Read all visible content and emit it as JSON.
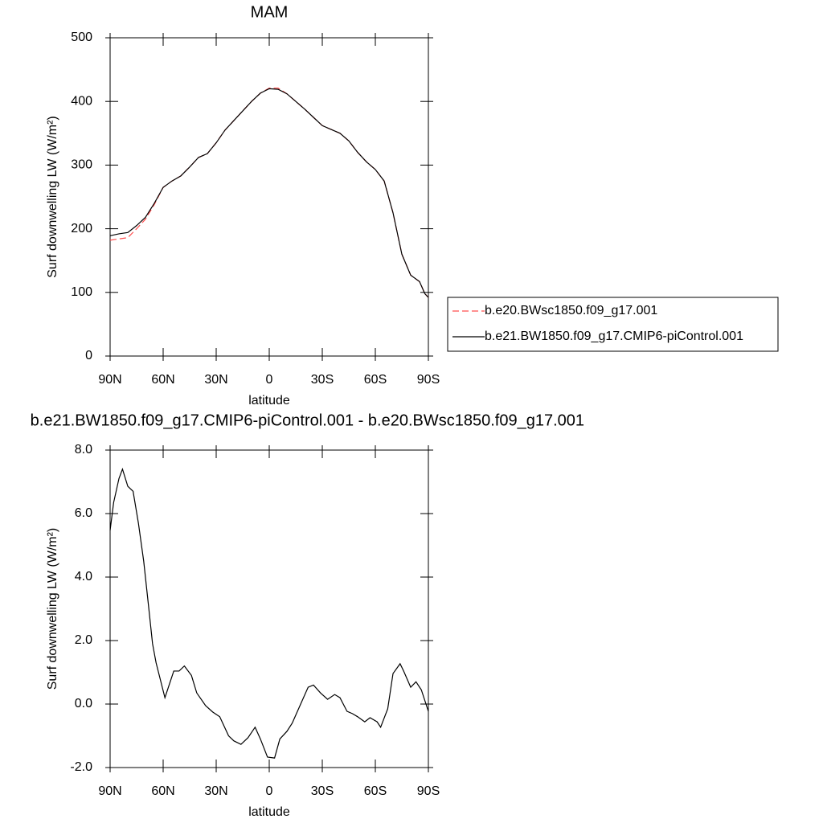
{
  "chart_data": [
    {
      "type": "line",
      "title": "MAM",
      "xlabel": "latitude",
      "ylabel": "Surf downwelling LW (W/m²)",
      "x": [
        90,
        85,
        80,
        75,
        70,
        65,
        60,
        55,
        50,
        45,
        40,
        35,
        30,
        25,
        20,
        15,
        10,
        5,
        0,
        -5,
        -10,
        -15,
        -20,
        -25,
        -30,
        -35,
        -40,
        -45,
        -50,
        -55,
        -60,
        -65,
        -70,
        -75,
        -80,
        -85,
        -88,
        -90
      ],
      "series": [
        {
          "name": "b.e20.BWsc1850.f09_g17.001",
          "color": "#ff4d4d",
          "dash": true,
          "values": [
            182,
            184,
            186,
            200,
            215,
            238,
            265,
            275,
            283,
            297,
            312,
            318,
            335,
            355,
            370,
            385,
            400,
            413,
            421,
            421,
            412,
            400,
            388,
            375,
            362,
            356,
            350,
            338,
            320,
            305,
            293,
            275,
            225,
            160,
            127,
            117,
            98,
            92
          ]
        },
        {
          "name": "b.e21.BW1850.f09_g17.CMIP6-piControl.001",
          "color": "#000000",
          "dash": false,
          "values": [
            189,
            192,
            194,
            205,
            218,
            240,
            265,
            275,
            283,
            297,
            312,
            318,
            335,
            355,
            370,
            385,
            400,
            413,
            420,
            419,
            412,
            400,
            388,
            375,
            362,
            356,
            350,
            338,
            320,
            305,
            293,
            275,
            225,
            160,
            127,
            117,
            98,
            92
          ]
        }
      ],
      "xlim": [
        90,
        -90
      ],
      "xticks": [
        {
          "value": 90,
          "label": "90N"
        },
        {
          "value": 60,
          "label": "60N"
        },
        {
          "value": 30,
          "label": "30N"
        },
        0,
        {
          "value": -30,
          "label": "30S"
        },
        {
          "value": -60,
          "label": "60S"
        },
        {
          "value": -90,
          "label": "90S"
        }
      ],
      "ylim": [
        0,
        500
      ],
      "yticks": [
        0,
        100,
        200,
        300,
        400,
        500
      ],
      "legend": "right"
    },
    {
      "type": "line",
      "title": "b.e21.BW1850.f09_g17.CMIP6-piControl.001 - b.e20.BWsc1850.f09_g17.001",
      "xlabel": "latitude",
      "ylabel": "Surf downwelling LW (W/m²)",
      "x": [
        90,
        88,
        85,
        83,
        80,
        77,
        74,
        71,
        68,
        66,
        64,
        59,
        54,
        51,
        48,
        44,
        41,
        36,
        32,
        28,
        23,
        20,
        16,
        12,
        8,
        5,
        1,
        -3,
        -6,
        -10,
        -13,
        -18,
        -22,
        -25,
        -29,
        -33,
        -37,
        -40,
        -44,
        -47,
        -50,
        -54,
        -57,
        -61,
        -63,
        -67,
        -70,
        -74,
        -76,
        -80,
        -83,
        -86,
        -90
      ],
      "series": [
        {
          "name": "b.e21.BW1850.f09_g17.CMIP6-piControl.001 - b.e20.BWsc1850.f09_g17.001",
          "color": "#000000",
          "dash": false,
          "values": [
            5.47,
            6.35,
            7.1,
            7.4,
            6.86,
            6.7,
            5.7,
            4.5,
            2.95,
            1.9,
            1.3,
            0.2,
            1.04,
            1.04,
            1.2,
            0.9,
            0.35,
            -0.05,
            -0.25,
            -0.4,
            -1.0,
            -1.16,
            -1.27,
            -1.06,
            -0.73,
            -1.1,
            -1.67,
            -1.7,
            -1.1,
            -0.86,
            -0.6,
            0.03,
            0.53,
            0.6,
            0.35,
            0.15,
            0.3,
            0.2,
            -0.23,
            -0.3,
            -0.4,
            -0.56,
            -0.43,
            -0.56,
            -0.73,
            -0.15,
            0.96,
            1.27,
            1.04,
            0.53,
            0.7,
            0.45,
            -0.23
          ]
        }
      ],
      "xlim": [
        90,
        -90
      ],
      "xticks": [
        {
          "value": 90,
          "label": "90N"
        },
        {
          "value": 60,
          "label": "60N"
        },
        {
          "value": 30,
          "label": "30N"
        },
        0,
        {
          "value": -30,
          "label": "30S"
        },
        {
          "value": -60,
          "label": "60S"
        },
        {
          "value": -90,
          "label": "90S"
        }
      ],
      "ylim": [
        -2,
        8
      ],
      "yticks": [
        {
          "value": -2,
          "label": "-2.0"
        },
        {
          "value": 0,
          "label": "0.0"
        },
        {
          "value": 2,
          "label": "2.0"
        },
        {
          "value": 4,
          "label": "4.0"
        },
        {
          "value": 6,
          "label": "6.0"
        },
        {
          "value": 8,
          "label": "8.0"
        }
      ]
    }
  ]
}
